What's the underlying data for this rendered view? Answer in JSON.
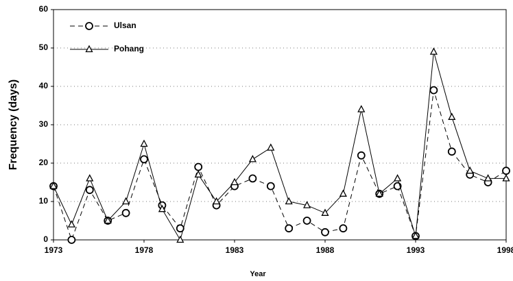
{
  "chart_data": {
    "type": "line",
    "xlabel": "Year",
    "ylabel": "Frequency (days)",
    "x": [
      1973,
      1974,
      1975,
      1976,
      1977,
      1978,
      1979,
      1980,
      1981,
      1982,
      1983,
      1984,
      1985,
      1986,
      1987,
      1988,
      1989,
      1990,
      1991,
      1992,
      1993,
      1994,
      1995,
      1996,
      1997,
      1998
    ],
    "series": [
      {
        "name": "Ulsan",
        "color": "#000000",
        "dashed": true,
        "marker": "circle",
        "values": [
          14,
          0,
          13,
          5,
          7,
          21,
          9,
          3,
          19,
          9,
          14,
          16,
          14,
          3,
          5,
          2,
          3,
          22,
          12,
          14,
          1,
          39,
          23,
          17,
          15,
          18
        ]
      },
      {
        "name": "Pohang",
        "color": "#000000",
        "dashed": false,
        "marker": "triangle",
        "values": [
          14,
          4,
          16,
          5,
          10,
          25,
          8,
          0,
          17,
          10,
          15,
          21,
          24,
          10,
          9,
          7,
          12,
          34,
          12,
          16,
          1,
          49,
          32,
          18,
          16,
          16
        ]
      }
    ],
    "xlim": [
      1973,
      1998
    ],
    "xticks": [
      1973,
      1978,
      1983,
      1988,
      1993,
      1998
    ],
    "ylim": [
      0,
      60
    ],
    "yticks": [
      0,
      10,
      20,
      30,
      40,
      50,
      60
    ],
    "grid": true,
    "legend": "upper left"
  }
}
